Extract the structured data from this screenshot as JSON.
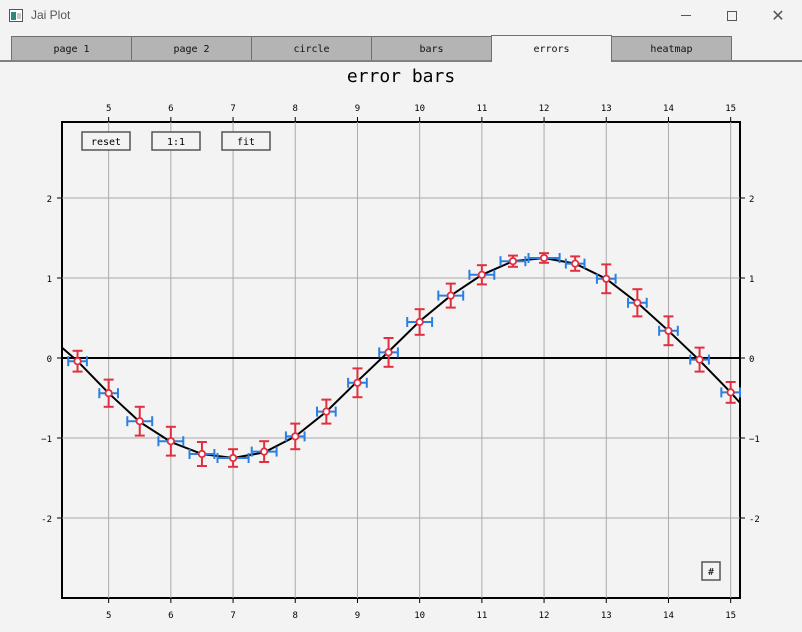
{
  "window": {
    "title": "Jai Plot"
  },
  "tabs": [
    {
      "label": "page 1",
      "active": false
    },
    {
      "label": "page 2",
      "active": false
    },
    {
      "label": "circle",
      "active": false
    },
    {
      "label": "bars",
      "active": false
    },
    {
      "label": "errors",
      "active": true
    },
    {
      "label": "heatmap",
      "active": false
    }
  ],
  "controls": {
    "reset_label": "reset",
    "one_to_one_label": "1:1",
    "fit_label": "fit",
    "grid_toggle_label": "#"
  },
  "colors": {
    "curve": "#000000",
    "points": "#e03040",
    "y_error": "#e03040",
    "x_error": "#2a7fe0",
    "grid": "#aaaaaa",
    "background": "#f3f3f3"
  },
  "chart_data": {
    "type": "line",
    "title": "error bars",
    "xlabel": "",
    "ylabel": "",
    "xlim": [
      4.25,
      15.15
    ],
    "ylim": [
      -3.0,
      2.95
    ],
    "grid": true,
    "x_ticks": [
      5,
      6,
      7,
      8,
      9,
      10,
      11,
      12,
      13,
      14,
      15
    ],
    "y_ticks": [
      -2,
      -1,
      0,
      1,
      2
    ],
    "y_tick_labels": [
      "-2",
      "−1",
      "0",
      "1",
      "2"
    ],
    "zero_line": 0,
    "series": [
      {
        "type": "line",
        "x": [
          4.25,
          4.5,
          5.0,
          5.5,
          6.0,
          6.5,
          7.0,
          7.5,
          8.0,
          8.5,
          9.0,
          9.5,
          10.0,
          10.5,
          11.0,
          11.5,
          12.0,
          12.5,
          13.0,
          13.5,
          14.0,
          14.5,
          15.0,
          15.15
        ],
        "y": [
          0.13,
          -0.04,
          -0.44,
          -0.8,
          -1.05,
          -1.2,
          -1.25,
          -1.18,
          -0.98,
          -0.67,
          -0.29,
          0.08,
          0.46,
          0.78,
          1.04,
          1.21,
          1.25,
          1.18,
          0.99,
          0.69,
          0.34,
          -0.03,
          -0.43,
          -0.56
        ]
      },
      {
        "type": "errorbar",
        "x": [
          4.5,
          5.0,
          5.5,
          6.0,
          6.5,
          7.0,
          7.5,
          8.0,
          8.5,
          9.0,
          9.5,
          10.0,
          10.5,
          11.0,
          11.5,
          12.0,
          12.5,
          13.0,
          13.5,
          14.0,
          14.5,
          15.0
        ],
        "y": [
          -0.04,
          -0.44,
          -0.79,
          -1.04,
          -1.2,
          -1.25,
          -1.17,
          -0.98,
          -0.67,
          -0.31,
          0.07,
          0.45,
          0.78,
          1.04,
          1.21,
          1.25,
          1.18,
          0.99,
          0.69,
          0.34,
          -0.02,
          -0.43
        ],
        "x_err": [
          0.15,
          0.15,
          0.2,
          0.2,
          0.2,
          0.25,
          0.2,
          0.15,
          0.15,
          0.15,
          0.15,
          0.2,
          0.2,
          0.2,
          0.2,
          0.25,
          0.15,
          0.15,
          0.15,
          0.15,
          0.15,
          0.15
        ],
        "y_err": [
          0.13,
          0.17,
          0.18,
          0.18,
          0.15,
          0.11,
          0.13,
          0.16,
          0.15,
          0.18,
          0.18,
          0.16,
          0.15,
          0.12,
          0.07,
          0.06,
          0.09,
          0.18,
          0.17,
          0.18,
          0.15,
          0.13
        ]
      }
    ]
  }
}
